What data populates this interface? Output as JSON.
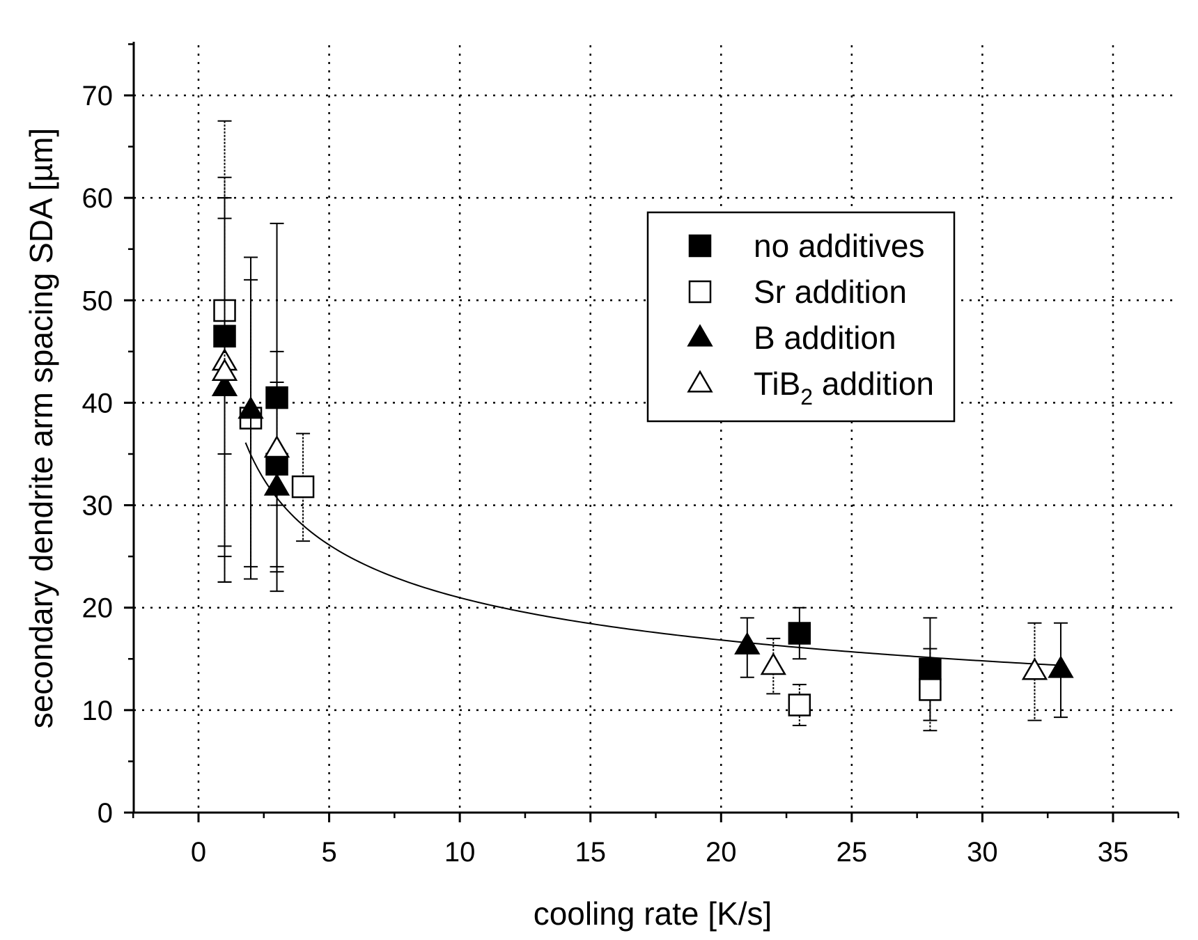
{
  "chart_data": {
    "type": "scatter",
    "title": "",
    "xlabel": "cooling rate [K/s]",
    "ylabel": "secondary dendrite arm spacing SDA [µm]",
    "xlim": [
      -2.5,
      37.5
    ],
    "ylim": [
      0,
      75
    ],
    "xticks": [
      0,
      5,
      10,
      15,
      20,
      25,
      30,
      35
    ],
    "yticks": [
      0,
      10,
      20,
      30,
      40,
      50,
      60,
      70
    ],
    "xtick_labels": [
      "0",
      "5",
      "10",
      "15",
      "20",
      "25",
      "30",
      "35"
    ],
    "ytick_labels": [
      "0",
      "10",
      "20",
      "30",
      "40",
      "50",
      "60",
      "70"
    ],
    "grid": true,
    "legend_position": "upper-right",
    "series": [
      {
        "name": "no additives",
        "legend_label": "no additives",
        "marker": "square",
        "filled": true,
        "points": [
          {
            "x": 1,
            "y": 46.5,
            "err_low": 35.0,
            "err_high": 58.0
          },
          {
            "x": 3,
            "y": 40.5,
            "err_low": 23.5,
            "err_high": 57.5
          },
          {
            "x": 3,
            "y": 34.0,
            "err_low": 24.0,
            "err_high": 45.0
          },
          {
            "x": 23,
            "y": 17.5,
            "err_low": 15.0,
            "err_high": 20.0
          },
          {
            "x": 28,
            "y": 14.0,
            "err_low": 9.0,
            "err_high": 19.0
          }
        ]
      },
      {
        "name": "Sr addition",
        "legend_label": "Sr addition",
        "marker": "square",
        "filled": false,
        "points": [
          {
            "x": 1,
            "y": 49.0,
            "err_low": 26.0,
            "err_high": 62.0
          },
          {
            "x": 2,
            "y": 38.5,
            "err_low": 24.0,
            "err_high": 52.0
          },
          {
            "x": 4,
            "y": 31.8,
            "err_low": 26.5,
            "err_high": 37.0
          },
          {
            "x": 23,
            "y": 10.5,
            "err_low": 8.5,
            "err_high": 12.5
          },
          {
            "x": 28,
            "y": 12.0,
            "err_low": 8.0,
            "err_high": 16.0
          }
        ]
      },
      {
        "name": "B addition",
        "legend_label": "B addition",
        "marker": "triangle",
        "filled": true,
        "points": [
          {
            "x": 1,
            "y": 41.5,
            "err_low": 22.5,
            "err_high": 60.0
          },
          {
            "x": 2,
            "y": 39.3,
            "err_low": 22.8,
            "err_high": 54.2
          },
          {
            "x": 3,
            "y": 31.8,
            "err_low": 21.6,
            "err_high": 42.0
          },
          {
            "x": 21,
            "y": 16.3,
            "err_low": 13.2,
            "err_high": 19.0
          },
          {
            "x": 33,
            "y": 14.0,
            "err_low": 9.3,
            "err_high": 18.5
          }
        ]
      },
      {
        "name": "TiB2 addition",
        "legend_label": "TiB",
        "legend_subscript": "2",
        "legend_suffix": " addition",
        "marker": "triangle",
        "filled": false,
        "points": [
          {
            "x": 1,
            "y": 44.0,
            "err_low": 22.5,
            "err_high": 67.5
          },
          {
            "x": 1,
            "y": 43.0,
            "err_low": 25.0,
            "err_high": 60.0
          },
          {
            "x": 3,
            "y": 35.5,
            "err_low": 30.0,
            "err_high": 40.0
          },
          {
            "x": 22,
            "y": 14.3,
            "err_low": 11.6,
            "err_high": 17.0
          },
          {
            "x": 32,
            "y": 13.8,
            "err_low": 9.0,
            "err_high": 18.5
          }
        ]
      }
    ],
    "fit_curve": {
      "type": "power",
      "a": 43.5,
      "b": -0.3168,
      "x_range": [
        1.8,
        33
      ]
    }
  }
}
